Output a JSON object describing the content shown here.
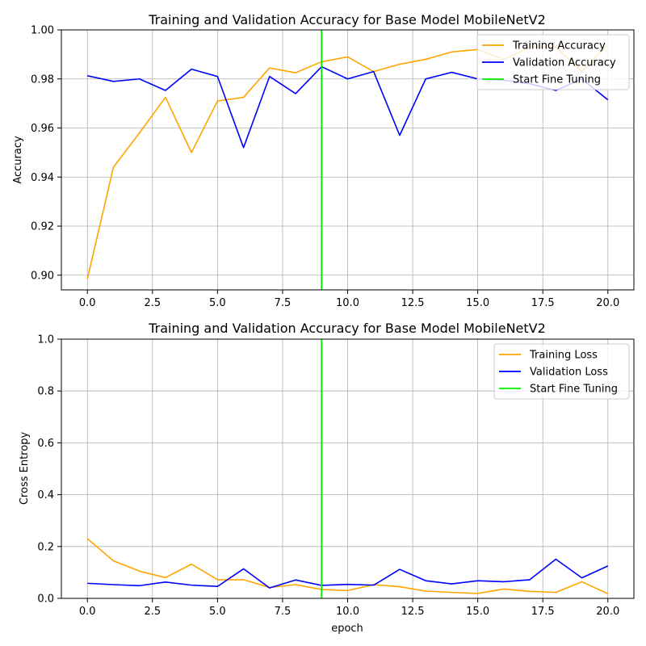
{
  "chart_data": [
    {
      "type": "line",
      "title": "Training and Validation Accuracy for Base Model MobileNetV2",
      "xlabel": "",
      "ylabel": "Accuracy",
      "xlim": [
        -1,
        21
      ],
      "ylim": [
        0.894,
        1.0
      ],
      "grid": true,
      "legend_position": "top-right",
      "xticks": [
        0,
        2.5,
        5,
        7.5,
        10,
        12.5,
        15,
        17.5,
        20
      ],
      "xtick_labels": [
        "0.0",
        "2.5",
        "5.0",
        "7.5",
        "10.0",
        "12.5",
        "15.0",
        "17.5",
        "20.0"
      ],
      "yticks": [
        0.9,
        0.92,
        0.94,
        0.96,
        0.98,
        1.0
      ],
      "ytick_labels": [
        "0.90",
        "0.92",
        "0.94",
        "0.96",
        "0.98",
        "1.00"
      ],
      "x": [
        0,
        1,
        2,
        3,
        4,
        5,
        6,
        7,
        8,
        9,
        10,
        11,
        12,
        13,
        14,
        15,
        16,
        17,
        18,
        19,
        20
      ],
      "series": [
        {
          "name": "Training Accuracy",
          "color": "#ffa500",
          "values": [
            0.8985,
            0.944,
            0.958,
            0.9725,
            0.95,
            0.971,
            0.9725,
            0.9845,
            0.9825,
            0.987,
            0.989,
            0.983,
            0.986,
            0.988,
            0.991,
            0.992,
            0.988,
            0.993,
            0.993,
            0.983,
            0.994
          ]
        },
        {
          "name": "Validation Accuracy",
          "color": "#0000ff",
          "values": [
            0.9813,
            0.979,
            0.98,
            0.9753,
            0.984,
            0.981,
            0.952,
            0.981,
            0.974,
            0.985,
            0.98,
            0.983,
            0.957,
            0.98,
            0.9827,
            0.98,
            0.9795,
            0.978,
            0.9753,
            0.98,
            0.9715
          ]
        }
      ],
      "vline": {
        "name": "Start Fine Tuning",
        "x": 9,
        "color": "#00ee00"
      }
    },
    {
      "type": "line",
      "title": "Training and Validation Accuracy for Base Model MobileNetV2",
      "xlabel": "epoch",
      "ylabel": "Cross Entropy",
      "xlim": [
        -1,
        21
      ],
      "ylim": [
        0,
        1.0
      ],
      "grid": true,
      "legend_position": "top-right",
      "xticks": [
        0,
        2.5,
        5,
        7.5,
        10,
        12.5,
        15,
        17.5,
        20
      ],
      "xtick_labels": [
        "0.0",
        "2.5",
        "5.0",
        "7.5",
        "10.0",
        "12.5",
        "15.0",
        "17.5",
        "20.0"
      ],
      "yticks": [
        0.0,
        0.2,
        0.4,
        0.6,
        0.8,
        1.0
      ],
      "ytick_labels": [
        "0.0",
        "0.2",
        "0.4",
        "0.6",
        "0.8",
        "1.0"
      ],
      "x": [
        0,
        1,
        2,
        3,
        4,
        5,
        6,
        7,
        8,
        9,
        10,
        11,
        12,
        13,
        14,
        15,
        16,
        17,
        18,
        19,
        20
      ],
      "series": [
        {
          "name": "Training Loss",
          "color": "#ffa500",
          "values": [
            0.23,
            0.145,
            0.105,
            0.08,
            0.132,
            0.072,
            0.072,
            0.042,
            0.053,
            0.034,
            0.03,
            0.053,
            0.045,
            0.028,
            0.023,
            0.019,
            0.036,
            0.027,
            0.023,
            0.064,
            0.018
          ]
        },
        {
          "name": "Validation Loss",
          "color": "#0000ff",
          "values": [
            0.058,
            0.053,
            0.049,
            0.063,
            0.051,
            0.046,
            0.114,
            0.04,
            0.071,
            0.05,
            0.054,
            0.051,
            0.112,
            0.068,
            0.056,
            0.068,
            0.064,
            0.072,
            0.151,
            0.079,
            0.125
          ]
        }
      ],
      "vline": {
        "name": "Start Fine Tuning",
        "x": 9,
        "color": "#00ee00"
      }
    }
  ]
}
